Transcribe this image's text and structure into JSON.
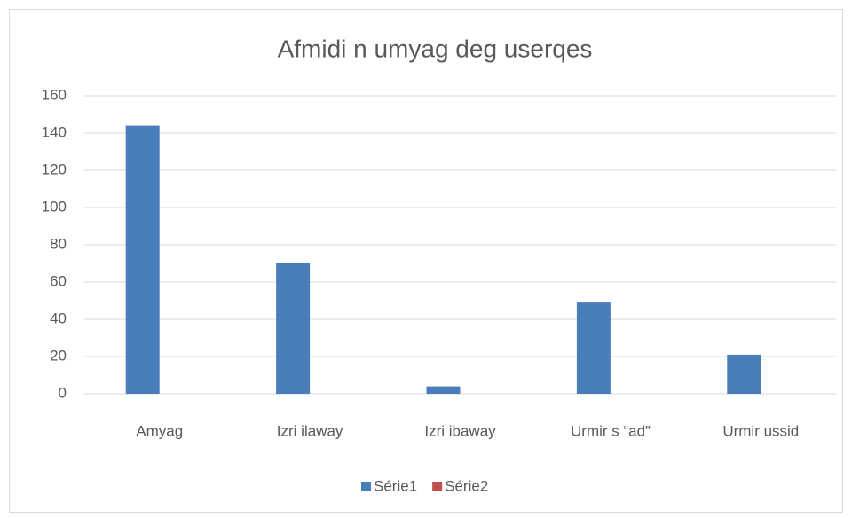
{
  "chart_data": {
    "type": "bar",
    "title": "Afmidi n umyag deg userqes",
    "categories": [
      "Amyag",
      "Izri ilaway",
      "Izri ibaway",
      "Urmir s “ad”",
      "Urmir ussid"
    ],
    "series": [
      {
        "name": "Série1",
        "color": "#4a7ebb",
        "values": [
          144,
          70,
          4,
          49,
          21
        ]
      },
      {
        "name": "Série2",
        "color": "#c0504d",
        "values": [
          null,
          null,
          null,
          null,
          null
        ]
      }
    ],
    "ylim": [
      0,
      160
    ],
    "yticks": [
      0,
      20,
      40,
      60,
      80,
      100,
      120,
      140,
      160
    ],
    "grid": true,
    "legend": "bottom"
  }
}
